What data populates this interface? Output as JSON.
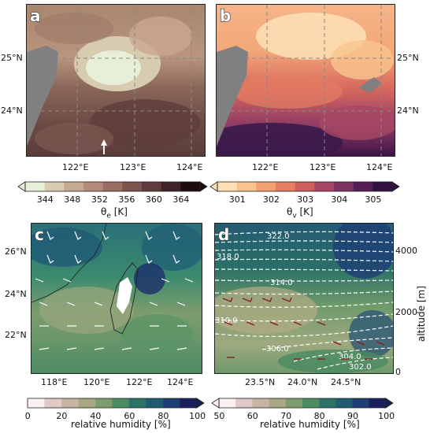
{
  "panels": {
    "a": {
      "label": "a",
      "xticks": [
        "122°E",
        "123°E",
        "124°E"
      ],
      "yticks": [
        "25°N",
        "24°N"
      ]
    },
    "b": {
      "label": "b",
      "xticks": [
        "122°E",
        "123°E",
        "124°E"
      ],
      "yticks": [
        "25°N",
        "24°N"
      ]
    },
    "c": {
      "label": "c",
      "xticks": [
        "118°E",
        "120°E",
        "122°E",
        "124°E"
      ],
      "yticks": [
        "26°N",
        "24°N",
        "22°N"
      ]
    },
    "d": {
      "label": "d",
      "xticks": [
        "23.5°N",
        "24.0°N",
        "24.5°N"
      ],
      "yticks": [
        "4000",
        "2000",
        "0"
      ],
      "ylabel": "altitude [m]",
      "contours": [
        "322.0",
        "318.0",
        "314.0",
        "310.0",
        "306.0",
        "304.0",
        "302.0"
      ]
    }
  },
  "colorbars": {
    "a": {
      "ticks": [
        "344",
        "348",
        "352",
        "356",
        "360",
        "364"
      ],
      "title": "θe [K]",
      "title_main": "θ",
      "title_sub": "e",
      "title_unit": " [K]",
      "colors": [
        "#e7efd9",
        "#d8cdb2",
        "#c5aa92",
        "#b48b7a",
        "#9b6e63",
        "#7d5350",
        "#5e3b3c",
        "#3e2427",
        "#1c0c0e"
      ]
    },
    "b": {
      "ticks": [
        "301",
        "302",
        "303",
        "304",
        "305"
      ],
      "title": "θv [K]",
      "title_main": "θ",
      "title_sub": "v",
      "title_unit": " [K]",
      "colors": [
        "#fde1b6",
        "#f9c48e",
        "#f2a171",
        "#e47e63",
        "#cc5e5e",
        "#a74765",
        "#7c3462",
        "#541f55",
        "#311240"
      ]
    },
    "c": {
      "ticks": [
        "0",
        "20",
        "40",
        "60",
        "80",
        "100"
      ],
      "title": "relative humidity [%]",
      "colors": [
        "#fbf0f0",
        "#e0c9c6",
        "#c9b3a2",
        "#a8a884",
        "#7f9c6e",
        "#4d8b63",
        "#2a7265",
        "#205b6f",
        "#1e3f75",
        "#1a1f5a"
      ]
    },
    "d": {
      "ticks": [
        "50",
        "60",
        "70",
        "80",
        "90",
        "100"
      ],
      "title": "relative humidity [%]",
      "colors": [
        "#fbf0f0",
        "#e0c9c6",
        "#c9b3a2",
        "#a8a884",
        "#7f9c6e",
        "#4d8b63",
        "#2a7265",
        "#205b6f",
        "#1e3f75",
        "#1a1f5a"
      ]
    }
  }
}
